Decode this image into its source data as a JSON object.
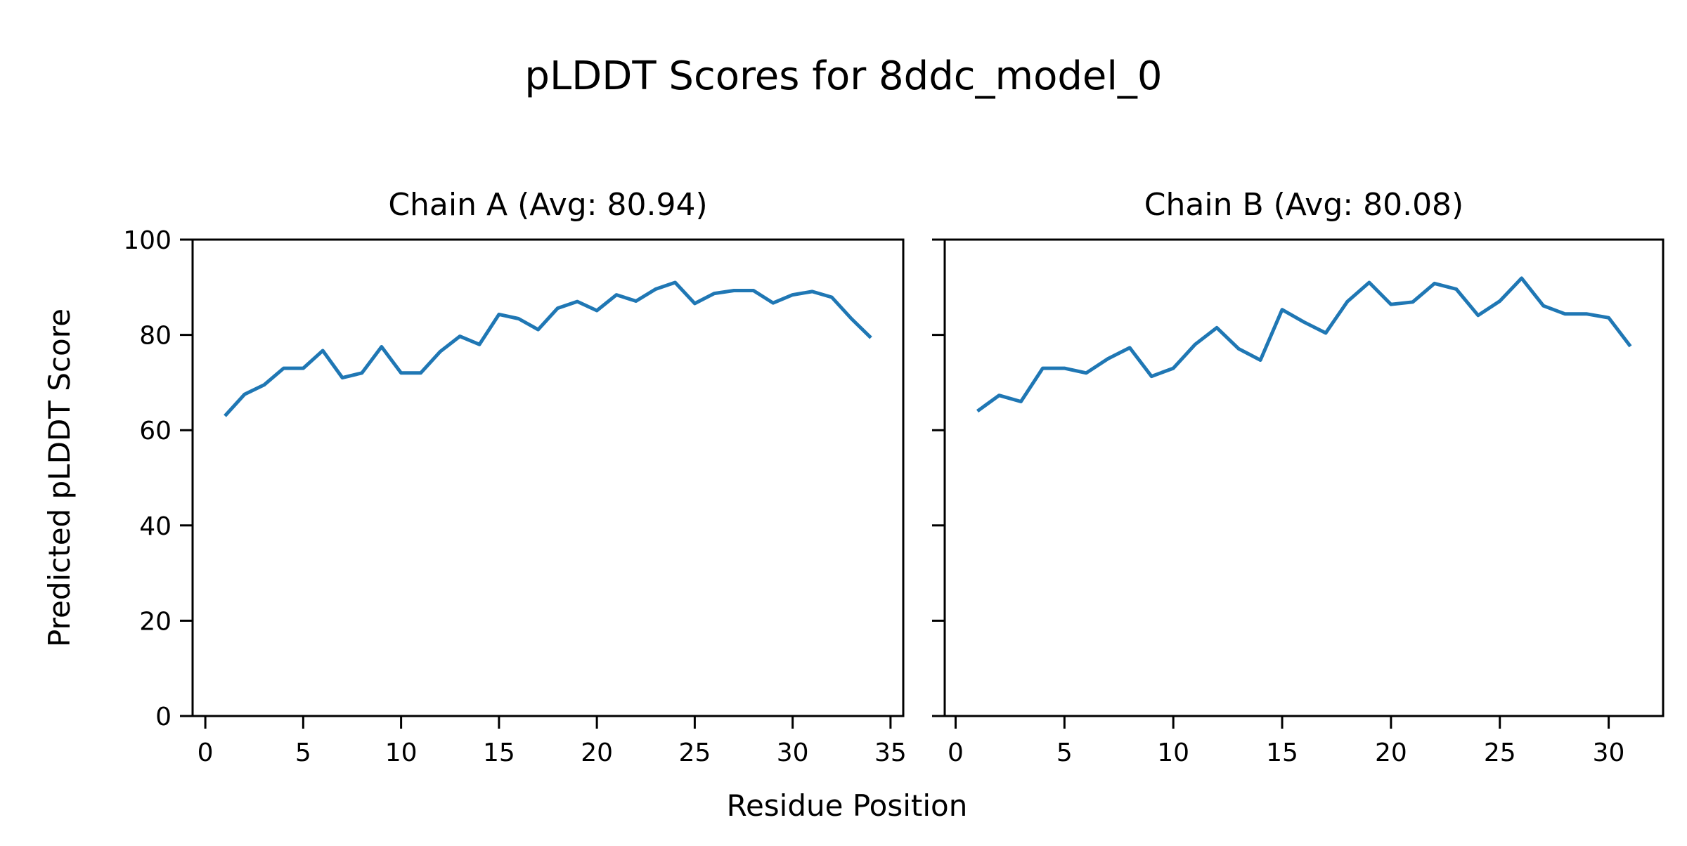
{
  "figure": {
    "suptitle": "pLDDT Scores for 8ddc_model_0",
    "xlabel": "Residue Position",
    "ylabel": "Predicted pLDDT Score",
    "background_color": "#ffffff",
    "text_color": "#000000"
  },
  "chart_data": [
    {
      "type": "line",
      "title": "Chain A (Avg: 80.94)",
      "average": 80.94,
      "xlabel": "Residue Position",
      "ylabel": "Predicted pLDDT Score",
      "xlim": [
        -0.65,
        35.65
      ],
      "ylim": [
        0,
        100
      ],
      "xticks": [
        0,
        5,
        10,
        15,
        20,
        25,
        30,
        35
      ],
      "yticks": [
        0,
        20,
        40,
        60,
        80,
        100
      ],
      "show_ytick_labels": true,
      "grid": false,
      "legend": "none",
      "line_color": "#1f77b4",
      "series": [
        {
          "name": "Chain A pLDDT",
          "x": [
            1,
            2,
            3,
            4,
            5,
            6,
            7,
            8,
            9,
            10,
            11,
            12,
            13,
            14,
            15,
            16,
            17,
            18,
            19,
            20,
            21,
            22,
            23,
            24,
            25,
            26,
            27,
            28,
            29,
            30,
            31,
            32,
            33,
            34
          ],
          "values": [
            63,
            67.5,
            69.5,
            73,
            73,
            76.7,
            71,
            72,
            77.5,
            72,
            72,
            76.5,
            79.7,
            78,
            84.3,
            83.4,
            81.1,
            85.6,
            87,
            85.1,
            88.4,
            87.1,
            89.6,
            91,
            86.6,
            88.7,
            89.3,
            89.3,
            86.7,
            88.4,
            89.1,
            87.9,
            83.4,
            79.4
          ]
        }
      ]
    },
    {
      "type": "line",
      "title": "Chain B (Avg: 80.08)",
      "average": 80.08,
      "xlabel": "Residue Position",
      "ylabel": "Predicted pLDDT Score",
      "xlim": [
        -0.5,
        32.5
      ],
      "ylim": [
        0,
        100
      ],
      "xticks": [
        0,
        5,
        10,
        15,
        20,
        25,
        30
      ],
      "yticks": [
        0,
        20,
        40,
        60,
        80,
        100
      ],
      "show_ytick_labels": false,
      "grid": false,
      "legend": "none",
      "line_color": "#1f77b4",
      "series": [
        {
          "name": "Chain B pLDDT",
          "x": [
            1,
            2,
            3,
            4,
            5,
            6,
            7,
            8,
            9,
            10,
            11,
            12,
            13,
            14,
            15,
            16,
            17,
            18,
            19,
            20,
            21,
            22,
            23,
            24,
            25,
            26,
            27,
            28,
            29,
            30,
            31
          ],
          "values": [
            64,
            67.3,
            66,
            73,
            73,
            72,
            75,
            77.3,
            71.3,
            73,
            78,
            81.5,
            77.1,
            74.7,
            85.3,
            82.7,
            80.4,
            87,
            91,
            86.4,
            86.9,
            90.8,
            89.6,
            84.1,
            87.1,
            91.9,
            86.1,
            84.4,
            84.4,
            83.6,
            77.6
          ]
        }
      ]
    }
  ]
}
